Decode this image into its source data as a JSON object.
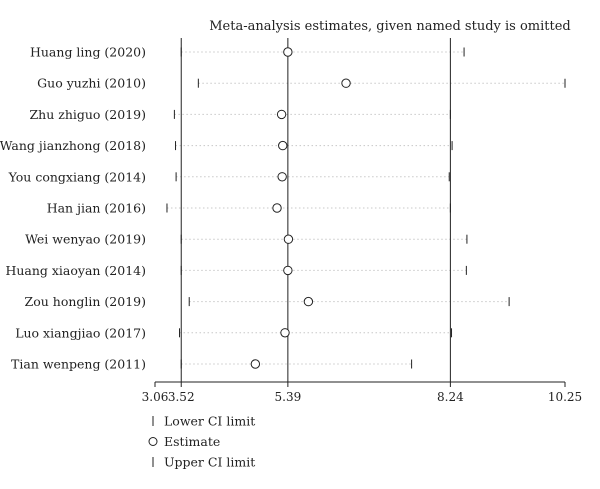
{
  "chart_data": {
    "type": "forest",
    "title": "Meta-analysis estimates, given named study is omitted",
    "studies": [
      {
        "name": "Huang ling (2020)",
        "lower": 3.52,
        "estimate": 5.39,
        "upper": 8.48
      },
      {
        "name": "Guo yuzhi (2010)",
        "lower": 3.82,
        "estimate": 6.41,
        "upper": 10.25
      },
      {
        "name": "Zhu zhiguo (2019)",
        "lower": 3.4,
        "estimate": 5.28,
        "upper": 8.24
      },
      {
        "name": "Wang jianzhong (2018)",
        "lower": 3.42,
        "estimate": 5.3,
        "upper": 8.27
      },
      {
        "name": "You congxiang (2014)",
        "lower": 3.43,
        "estimate": 5.29,
        "upper": 8.22
      },
      {
        "name": "Han jian (2016)",
        "lower": 3.27,
        "estimate": 5.2,
        "upper": 8.24
      },
      {
        "name": "Wei wenyao (2019)",
        "lower": 3.52,
        "estimate": 5.4,
        "upper": 8.53
      },
      {
        "name": "Huang xiaoyan (2014)",
        "lower": 3.52,
        "estimate": 5.39,
        "upper": 8.52
      },
      {
        "name": "Zou honglin (2019)",
        "lower": 3.66,
        "estimate": 5.75,
        "upper": 9.27
      },
      {
        "name": "Luo xiangjiao (2017)",
        "lower": 3.49,
        "estimate": 5.34,
        "upper": 8.26
      },
      {
        "name": "Tian wenpeng (2011)",
        "lower": 3.52,
        "estimate": 4.82,
        "upper": 7.56
      }
    ],
    "xlim": [
      3.06,
      10.25
    ],
    "xticks": [
      3.06,
      3.52,
      5.39,
      8.24,
      10.25
    ],
    "xtick_labels": [
      "3.06",
      "3.52",
      "5.39",
      "8.24",
      "10.25"
    ],
    "reference_lines": [
      3.52,
      5.39,
      8.24
    ],
    "legend": [
      {
        "symbol": "bar",
        "label": "Lower CI limit"
      },
      {
        "symbol": "circle",
        "label": "Estimate"
      },
      {
        "symbol": "bar",
        "label": "Upper CI limit"
      }
    ],
    "legend_position": "bottom-left",
    "colors": {
      "line": "#222222",
      "guide": "#c8c8c8"
    }
  }
}
